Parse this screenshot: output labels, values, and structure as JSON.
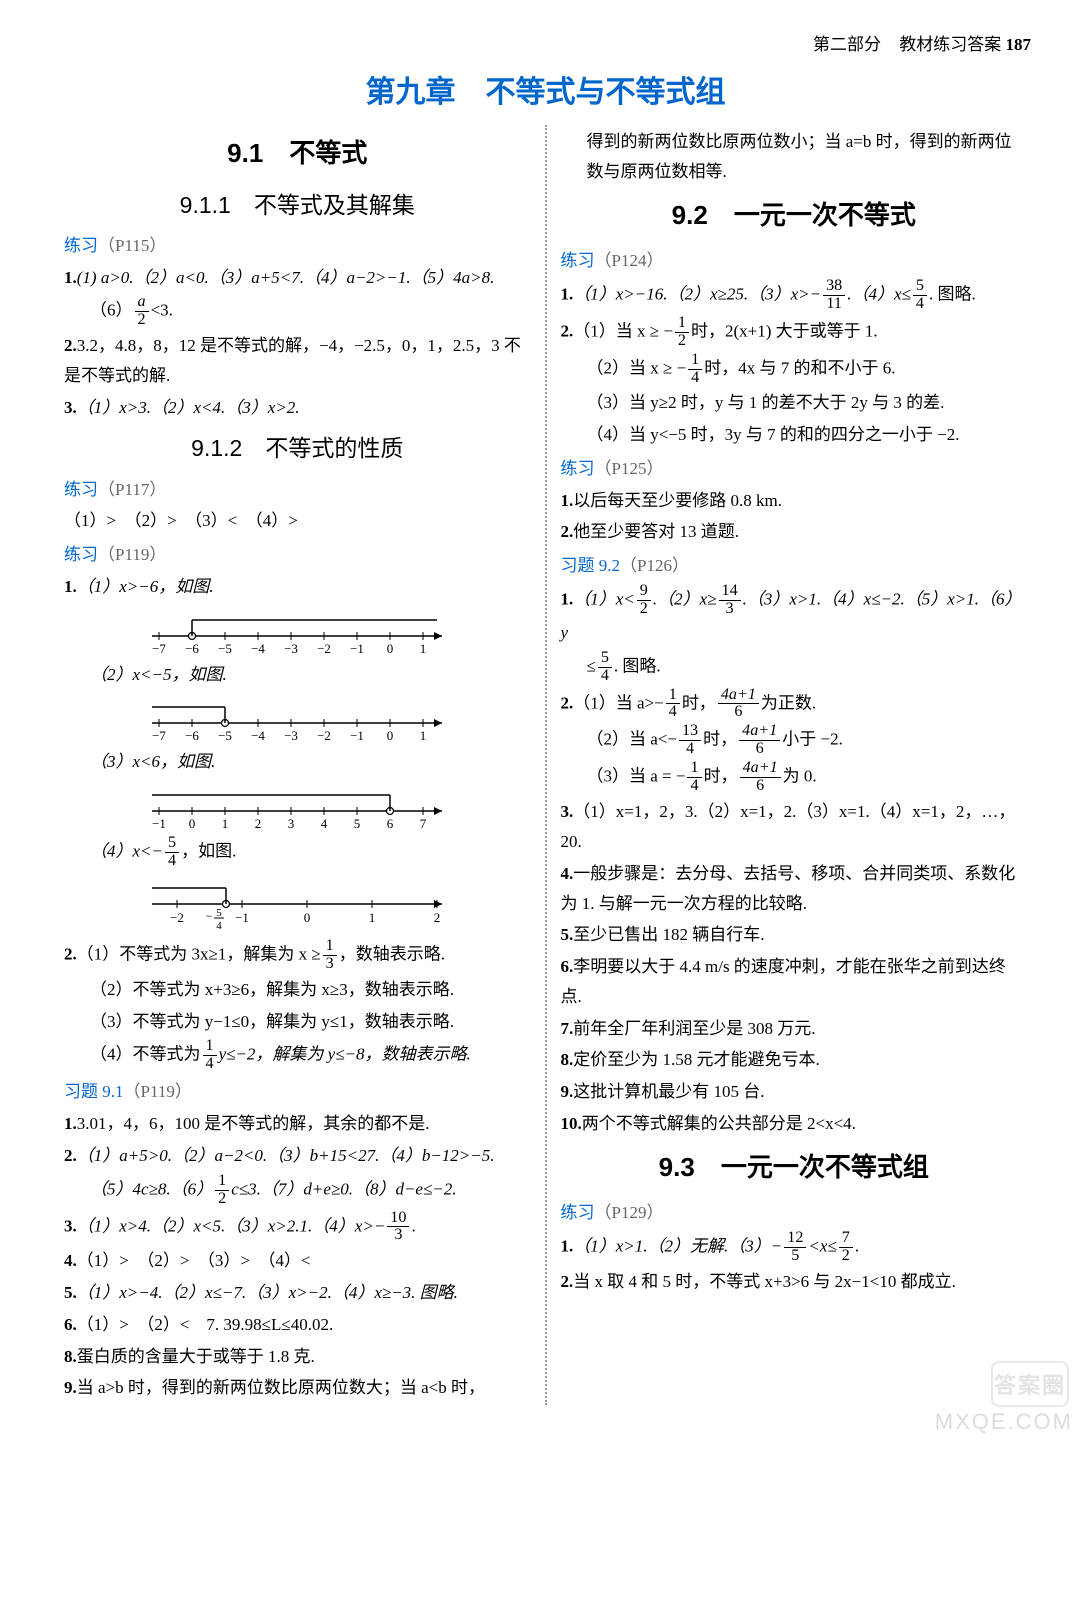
{
  "header": {
    "part": "第二部分",
    "label": "教材练习答案",
    "pagenum": "187"
  },
  "chapter": "第九章　不等式与不等式组",
  "watermark": {
    "badge": "答案圈",
    "url": "MXQE.COM"
  },
  "left": {
    "sec91": "9.1　不等式",
    "sub911": "9.1.1　不等式及其解集",
    "p115": {
      "label": "练习",
      "ref": "（P115）"
    },
    "q1": {
      "num": "1.",
      "parts": "(1) a>0.（2）a<0.（3）a+5<7.（4）a−2>−1.（5）4a>8.",
      "p6a": "（6）",
      "p6b": "<3."
    },
    "q2": {
      "num": "2.",
      "text": "3.2，4.8，8，12 是不等式的解，−4，−2.5，0，1，2.5，3 不是不等式的解."
    },
    "q3": {
      "num": "3.",
      "text": "（1）x>3.（2）x<4.（3）x>2."
    },
    "sub912": "9.1.2　不等式的性质",
    "p117": {
      "label": "练习",
      "ref": "（P117）"
    },
    "q117": {
      "text": "（1）>　（2）>　（3）<　（4）>"
    },
    "p119": {
      "label": "练习",
      "ref": "（P119）"
    },
    "q119_1": {
      "num": "1.",
      "p1": "（1）x>−6，如图.",
      "p2": "（2）x<−5，如图.",
      "p3": "（3）x<6，如图.",
      "p4a": "（4）x<−",
      "p4b": "，如图."
    },
    "nl1": {
      "ticks": [
        "−7",
        "−6",
        "−5",
        "−4",
        "−3",
        "−2",
        "−1",
        "0",
        "1"
      ],
      "mark": 1,
      "dir": "right",
      "open": true
    },
    "nl2": {
      "ticks": [
        "−7",
        "−6",
        "−5",
        "−4",
        "−3",
        "−2",
        "−1",
        "0",
        "1"
      ],
      "mark": 2,
      "dir": "left",
      "open": true
    },
    "nl3": {
      "ticks": [
        "−1",
        "0",
        "1",
        "2",
        "3",
        "4",
        "5",
        "6",
        "7"
      ],
      "mark": 7,
      "dir": "left",
      "open": true
    },
    "nl4": {
      "ticks": [
        "−2",
        "",
        "−1",
        "",
        "0",
        "",
        "1",
        "",
        "2"
      ],
      "markLabel": "−5/4",
      "dir": "left",
      "open": true
    },
    "q119_2": {
      "num": "2.",
      "p1a": "（1）不等式为 3x≥1，解集为 x ≥",
      "p1b": "，数轴表示略.",
      "p2": "（2）不等式为 x+3≥6，解集为 x≥3，数轴表示略.",
      "p3": "（3）不等式为 y−1≤0，解集为 y≤1，数轴表示略.",
      "p4a": "（4）不等式为",
      "p4b": "y≤−2，解集为 y≤−8，数轴表示略."
    },
    "ex91": {
      "label": "习题 9.1",
      "ref": "（P119）"
    },
    "e1": {
      "num": "1.",
      "text": "3.01，4，6，100 是不等式的解，其余的都不是."
    },
    "e2": {
      "num": "2.",
      "l1": "（1）a+5>0.（2）a−2<0.（3）b+15<27.（4）b−12>−5.",
      "l2a": "（5）4c≥8.（6）",
      "l2b": "c≤3.（7）d+e≥0.（8）d−e≤−2."
    },
    "e3": {
      "num": "3.",
      "l1a": "（1）x>4.（2）x<5.（3）x>2.1.（4）x>−",
      "l1b": "."
    },
    "e4": {
      "num": "4.",
      "text": "（1）>　（2）>　（3）>　（4）<"
    },
    "e5": {
      "num": "5.",
      "text": "（1）x>−4.（2）x≤−7.（3）x>−2.（4）x≥−3. 图略."
    },
    "e6": {
      "num": "6.",
      "text": "（1）>　（2）<　7. 39.98≤L≤40.02."
    },
    "e8": {
      "num": "8.",
      "text": "蛋白质的含量大于或等于 1.8 克."
    },
    "e9": {
      "num": "9.",
      "text": "当 a>b 时，得到的新两位数比原两位数大；当 a<b 时，"
    }
  },
  "right": {
    "carry": "得到的新两位数比原两位数小；当 a=b 时，得到的新两位数与原两位数相等.",
    "sec92": "9.2　一元一次不等式",
    "p124": {
      "label": "练习",
      "ref": "（P124）"
    },
    "r1": {
      "num": "1.",
      "a": "（1）x>−16.（2）x≥25.（3）x>−",
      "b": ".（4）x≤",
      "c": ". 图略."
    },
    "r2": {
      "num": "2.",
      "p1a": "（1）当 x ≥ −",
      "p1b": "时，2(x+1) 大于或等于 1.",
      "p2a": "（2）当 x ≥ −",
      "p2b": "时，4x 与 7 的和不小于 6.",
      "p3": "（3）当 y≥2 时，y 与 1 的差不大于 2y 与 3 的差.",
      "p4": "（4）当 y<−5 时，3y 与 7 的和的四分之一小于 −2."
    },
    "p125": {
      "label": "练习",
      "ref": "（P125）"
    },
    "r125_1": {
      "num": "1.",
      "text": "以后每天至少要修路 0.8 km."
    },
    "r125_2": {
      "num": "2.",
      "text": "他至少要答对 13 道题."
    },
    "ex92": {
      "label": "习题 9.2",
      "ref": "（P126）"
    },
    "s1": {
      "num": "1.",
      "a": "（1）x<",
      "b": ".（2）x≥",
      "c": ".（3）x>1.（4）x≤−2.（5）x>1.（6）y",
      "l2a": "≤",
      "l2b": ". 图略."
    },
    "s2": {
      "num": "2.",
      "p1a": "（1）当 a>−",
      "p1b": "时，",
      "p1c": "为正数.",
      "p2a": "（2）当 a<−",
      "p2b": "时，",
      "p2c": "小于 −2.",
      "p3a": "（3）当 a = −",
      "p3b": "时，",
      "p3c": "为 0."
    },
    "s3": {
      "num": "3.",
      "text": "（1）x=1，2，3.（2）x=1，2.（3）x=1.（4）x=1，2，…，20."
    },
    "s4": {
      "num": "4.",
      "text": "一般步骤是：去分母、去括号、移项、合并同类项、系数化为 1. 与解一元一次方程的比较略."
    },
    "s5": {
      "num": "5.",
      "text": "至少已售出 182 辆自行车."
    },
    "s6": {
      "num": "6.",
      "text": "李明要以大于 4.4 m/s 的速度冲刺，才能在张华之前到达终点."
    },
    "s7": {
      "num": "7.",
      "text": "前年全厂年利润至少是 308 万元."
    },
    "s8": {
      "num": "8.",
      "text": "定价至少为 1.58 元才能避免亏本."
    },
    "s9": {
      "num": "9.",
      "text": "这批计算机最少有 105 台."
    },
    "s10": {
      "num": "10.",
      "text": "两个不等式解集的公共部分是 2<x<4."
    },
    "sec93": "9.3　一元一次不等式组",
    "p129": {
      "label": "练习",
      "ref": "（P129）"
    },
    "t1": {
      "num": "1.",
      "a": "（1）x>1.（2）无解.（3）−",
      "b": "<x≤",
      "c": "."
    },
    "t2": {
      "num": "2.",
      "text": "当 x 取 4 和 5 时，不等式 x+3>6 与 2x−1<10 都成立."
    }
  }
}
